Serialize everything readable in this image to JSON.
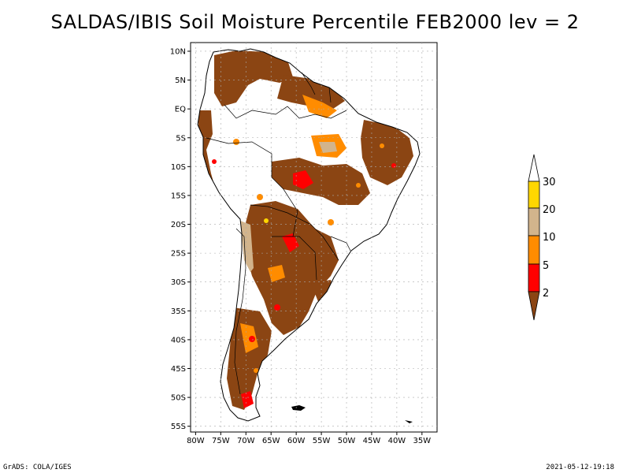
{
  "title": "SALDAS/IBIS Soil Moisture Percentile FEB2000 lev = 2",
  "footer": {
    "left": "GrADS: COLA/IGES",
    "right": "2021-05-12-19:18"
  },
  "map": {
    "lon_range": [
      -81,
      -32
    ],
    "lat_range": [
      -56,
      11.5
    ],
    "lat_ticks": [
      {
        "value": 10,
        "label": "10N"
      },
      {
        "value": 5,
        "label": "5N"
      },
      {
        "value": 0,
        "label": "EQ"
      },
      {
        "value": -5,
        "label": "5S"
      },
      {
        "value": -10,
        "label": "10S"
      },
      {
        "value": -15,
        "label": "15S"
      },
      {
        "value": -20,
        "label": "20S"
      },
      {
        "value": -25,
        "label": "25S"
      },
      {
        "value": -30,
        "label": "30S"
      },
      {
        "value": -35,
        "label": "35S"
      },
      {
        "value": -40,
        "label": "40S"
      },
      {
        "value": -45,
        "label": "45S"
      },
      {
        "value": -50,
        "label": "50S"
      },
      {
        "value": -55,
        "label": "55S"
      }
    ],
    "lon_ticks": [
      {
        "value": -80,
        "label": "80W"
      },
      {
        "value": -75,
        "label": "75W"
      },
      {
        "value": -70,
        "label": "70W"
      },
      {
        "value": -65,
        "label": "65W"
      },
      {
        "value": -60,
        "label": "60W"
      },
      {
        "value": -55,
        "label": "55W"
      },
      {
        "value": -50,
        "label": "50W"
      },
      {
        "value": -45,
        "label": "45W"
      },
      {
        "value": -40,
        "label": "40W"
      },
      {
        "value": -35,
        "label": "35W"
      }
    ]
  },
  "legend": {
    "levels": [
      "2",
      "5",
      "10",
      "20",
      "30"
    ],
    "colors": {
      "below_2": "#8B4513",
      "2_5": "#FF0000",
      "5_10": "#FF8C00",
      "10_20": "#D2B48C",
      "20_30": "#FFD700",
      "above_30": "#FFFFFF"
    }
  }
}
